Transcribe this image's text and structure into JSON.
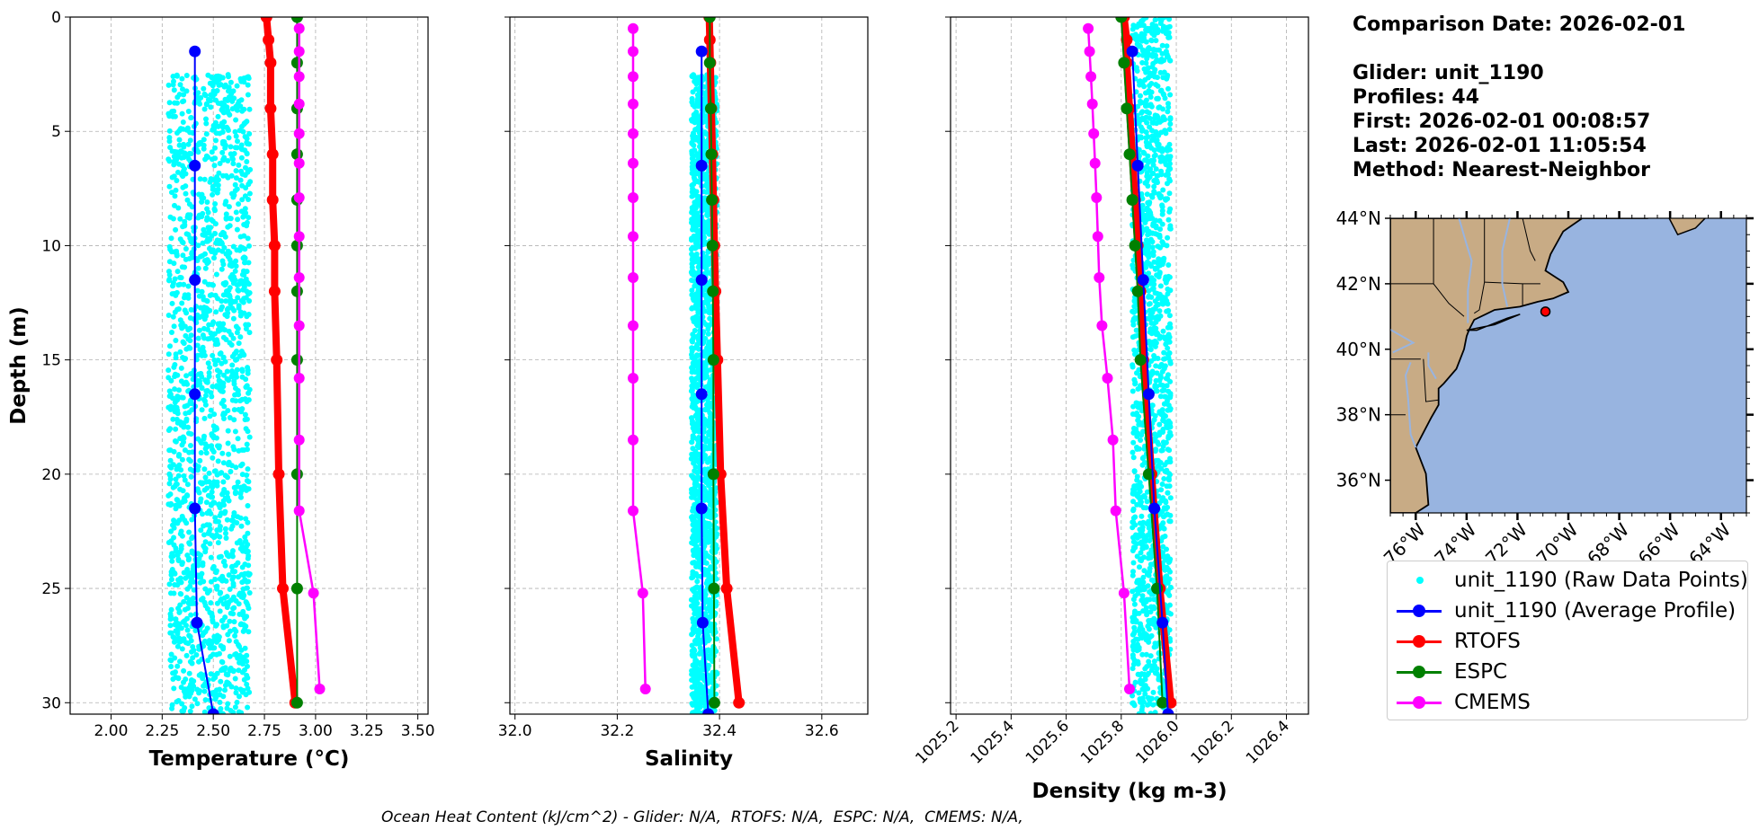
{
  "info": {
    "comparison_date": "Comparison Date: 2026-02-01",
    "glider": "Glider: unit_1190",
    "profiles": "Profiles: 44",
    "first": "First: 2026-02-01 00:08:57",
    "last": "Last: 2026-02-01 11:05:54",
    "method": "Method: Nearest-Neighbor"
  },
  "footer": "Ocean Heat Content (kJ/cm^2) - Glider: N/A,  RTOFS: N/A,  ESPC: N/A,  CMEMS: N/A,",
  "colors": {
    "raw": "#00ffff",
    "glider": "#0000ff",
    "rtofs": "#ff0000",
    "espc": "#008000",
    "cmems": "#ff00ff",
    "land": "#c8ab85",
    "ocean": "#98b4e0"
  },
  "legend": {
    "raw": "unit_1190 (Raw Data Points)",
    "glider": "unit_1190 (Average Profile)",
    "rtofs": "RTOFS",
    "espc": "ESPC",
    "cmems": "CMEMS"
  },
  "chart_data": [
    {
      "type": "line",
      "xlabel": "Temperature (°C)",
      "ylabel": "Depth (m)",
      "xlim": [
        1.8,
        3.55
      ],
      "ylim": [
        30.5,
        0
      ],
      "xticks": [
        "2.00",
        "2.25",
        "2.50",
        "2.75",
        "3.00",
        "3.25",
        "3.50"
      ],
      "yticks": [
        "0",
        "5",
        "10",
        "15",
        "20",
        "25",
        "30"
      ],
      "grid": true,
      "raw_points": {
        "x_range": [
          2.28,
          2.68
        ],
        "depth_range": [
          2.5,
          30.5
        ]
      },
      "series": [
        {
          "name": "unit_1190 (Average Profile)",
          "depth": [
            1.5,
            6.5,
            11.5,
            16.5,
            21.5,
            26.5,
            30.5
          ],
          "values": [
            2.41,
            2.41,
            2.41,
            2.41,
            2.41,
            2.42,
            2.5
          ]
        },
        {
          "name": "RTOFS",
          "depth": [
            0,
            1,
            2,
            4,
            6,
            8,
            10,
            12,
            15,
            20,
            25,
            30
          ],
          "values": [
            2.76,
            2.77,
            2.78,
            2.78,
            2.79,
            2.79,
            2.8,
            2.8,
            2.81,
            2.82,
            2.84,
            2.9
          ]
        },
        {
          "name": "ESPC",
          "depth": [
            0,
            2,
            4,
            6,
            8,
            10,
            12,
            15,
            20,
            25,
            30
          ],
          "values": [
            2.91,
            2.91,
            2.91,
            2.91,
            2.91,
            2.91,
            2.91,
            2.91,
            2.91,
            2.91,
            2.91
          ]
        },
        {
          "name": "CMEMS",
          "depth": [
            0.5,
            1.5,
            2.6,
            3.8,
            5.1,
            6.4,
            7.9,
            9.6,
            11.4,
            13.5,
            15.8,
            18.5,
            21.6,
            25.2,
            29.4
          ],
          "values": [
            2.92,
            2.92,
            2.92,
            2.92,
            2.92,
            2.92,
            2.92,
            2.92,
            2.92,
            2.92,
            2.92,
            2.92,
            2.92,
            2.99,
            3.02
          ]
        }
      ]
    },
    {
      "type": "line",
      "xlabel": "Salinity",
      "xlim": [
        31.99,
        32.69
      ],
      "ylim": [
        30.5,
        0
      ],
      "xticks": [
        "32.0",
        "32.2",
        "32.4",
        "32.6"
      ],
      "yticks": [
        "0",
        "5",
        "10",
        "15",
        "20",
        "25",
        "30"
      ],
      "grid": true,
      "raw_points": {
        "x_range": [
          32.345,
          32.395
        ],
        "depth_range": [
          2.5,
          30.5
        ]
      },
      "series": [
        {
          "name": "unit_1190 (Average Profile)",
          "depth": [
            1.5,
            6.5,
            11.5,
            16.5,
            21.5,
            26.5,
            30.5
          ],
          "values": [
            32.365,
            32.365,
            32.365,
            32.365,
            32.365,
            32.367,
            32.378
          ]
        },
        {
          "name": "RTOFS",
          "depth": [
            0,
            1,
            2,
            4,
            6,
            8,
            10,
            12,
            15,
            20,
            25,
            30
          ],
          "values": [
            32.38,
            32.381,
            32.382,
            32.384,
            32.386,
            32.388,
            32.39,
            32.392,
            32.396,
            32.402,
            32.414,
            32.438
          ]
        },
        {
          "name": "ESPC",
          "depth": [
            0,
            2,
            4,
            6,
            8,
            10,
            12,
            15,
            20,
            25,
            30
          ],
          "values": [
            32.381,
            32.381,
            32.383,
            32.384,
            32.385,
            32.386,
            32.387,
            32.388,
            32.388,
            32.389,
            32.39
          ]
        },
        {
          "name": "CMEMS",
          "depth": [
            0.5,
            1.5,
            2.6,
            3.8,
            5.1,
            6.4,
            7.9,
            9.6,
            11.4,
            13.5,
            15.8,
            18.5,
            21.6,
            25.2,
            29.4
          ],
          "values": [
            32.231,
            32.231,
            32.231,
            32.231,
            32.231,
            32.231,
            32.231,
            32.231,
            32.231,
            32.231,
            32.231,
            32.231,
            32.231,
            32.25,
            32.255
          ]
        }
      ]
    },
    {
      "type": "line",
      "xlabel": "Density (kg m-3)",
      "xlim": [
        1025.18,
        1026.48
      ],
      "ylim": [
        30.5,
        0
      ],
      "xticks": [
        "1025.2",
        "1025.4",
        "1025.6",
        "1025.8",
        "1026.0",
        "1026.2",
        "1026.4"
      ],
      "yticks": [
        "0",
        "5",
        "10",
        "15",
        "20",
        "25",
        "30"
      ],
      "grid": true,
      "raw_points": {
        "x_range": [
          1025.84,
          1025.98
        ],
        "depth_range": [
          0,
          30.5
        ]
      },
      "series": [
        {
          "name": "unit_1190 (Average Profile)",
          "depth": [
            1.5,
            6.5,
            11.5,
            16.5,
            21.5,
            26.5,
            30.5
          ],
          "values": [
            1025.84,
            1025.86,
            1025.88,
            1025.9,
            1025.92,
            1025.95,
            1025.97
          ]
        },
        {
          "name": "RTOFS",
          "depth": [
            0,
            1,
            2,
            4,
            6,
            8,
            10,
            12,
            15,
            20,
            25,
            30
          ],
          "values": [
            1025.81,
            1025.82,
            1025.82,
            1025.83,
            1025.84,
            1025.85,
            1025.86,
            1025.87,
            1025.88,
            1025.91,
            1025.94,
            1025.98
          ]
        },
        {
          "name": "ESPC",
          "depth": [
            0,
            2,
            4,
            6,
            8,
            10,
            12,
            15,
            20,
            25,
            30
          ],
          "values": [
            1025.8,
            1025.81,
            1025.82,
            1025.83,
            1025.84,
            1025.85,
            1025.86,
            1025.87,
            1025.9,
            1025.93,
            1025.95
          ]
        },
        {
          "name": "CMEMS",
          "depth": [
            0.5,
            1.5,
            2.6,
            3.8,
            5.1,
            6.4,
            7.9,
            9.6,
            11.4,
            13.5,
            15.8,
            18.5,
            21.6,
            25.2,
            29.4
          ],
          "values": [
            1025.68,
            1025.685,
            1025.69,
            1025.695,
            1025.7,
            1025.705,
            1025.71,
            1025.715,
            1025.72,
            1025.73,
            1025.75,
            1025.77,
            1025.78,
            1025.81,
            1025.83
          ]
        }
      ]
    }
  ],
  "map": {
    "lat_ticks": [
      "36°N",
      "38°N",
      "40°N",
      "42°N",
      "44°N"
    ],
    "lat_values": [
      36,
      38,
      40,
      42,
      44
    ],
    "lon_ticks": [
      "76°W",
      "74°W",
      "72°W",
      "70°W",
      "68°W",
      "66°W",
      "64°W"
    ],
    "lon_values": [
      -76,
      -74,
      -72,
      -70,
      -68,
      -66,
      -64
    ],
    "extent": {
      "lon": [
        -77,
        -63
      ],
      "lat": [
        35,
        44
      ]
    },
    "glider_position": {
      "lon": -70.9,
      "lat": 41.15
    }
  }
}
